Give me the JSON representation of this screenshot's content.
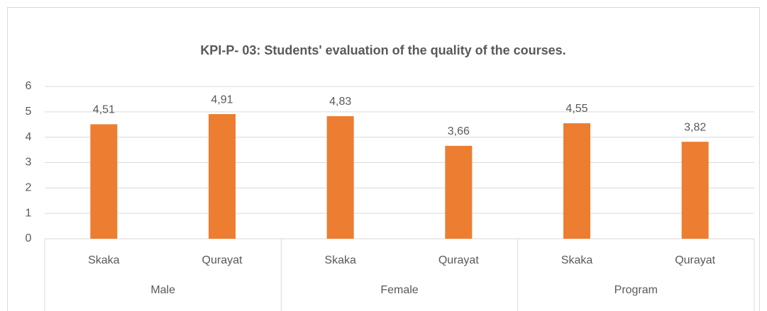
{
  "chart_data": {
    "type": "bar",
    "title": "KPI-P- 03: Students' evaluation of the quality of the courses.",
    "categories": [
      "Skaka",
      "Qurayat",
      "Skaka",
      "Qurayat",
      "Skaka",
      "Qurayat"
    ],
    "groups": [
      "Male",
      "Female",
      "Program"
    ],
    "values": [
      4.51,
      4.91,
      4.83,
      3.66,
      4.55,
      3.82
    ],
    "value_labels": [
      "4,51",
      "4,91",
      "4,83",
      "3,66",
      "4,55",
      "3,82"
    ],
    "color": "#ed7d31",
    "ylim": [
      0,
      6
    ],
    "yticks": [
      0,
      1,
      2,
      3,
      4,
      5,
      6
    ],
    "grid": true
  }
}
